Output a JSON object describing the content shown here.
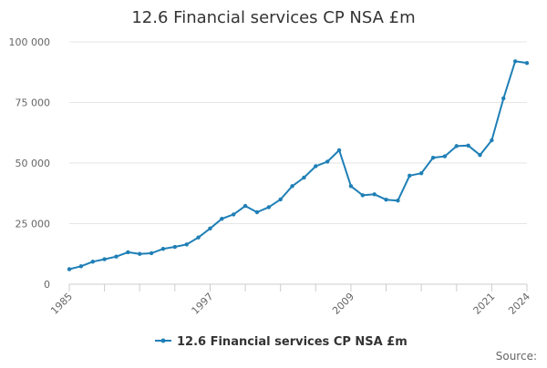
{
  "chart_data": {
    "type": "line",
    "title": "12.6 Financial services CP NSA £m",
    "xlabel": "",
    "ylabel": "",
    "xlim": [
      1985,
      2024
    ],
    "ylim": [
      0,
      100000
    ],
    "y_ticks": [
      0,
      25000,
      50000,
      75000,
      100000
    ],
    "y_tick_labels": [
      "0",
      "25 000",
      "50 000",
      "75 000",
      "100 000"
    ],
    "x_tick_labels": [
      "1985",
      "1997",
      "2009",
      "2021",
      "2024"
    ],
    "grid": "horizontal",
    "legend_position": "bottom",
    "series": [
      {
        "name": "12.6 Financial services CP NSA £m",
        "color": "#1f7fb6",
        "points": [
          [
            1985,
            6200
          ],
          [
            1986,
            7400
          ],
          [
            1987,
            9300
          ],
          [
            1988,
            10300
          ],
          [
            1989,
            11400
          ],
          [
            1990,
            13200
          ],
          [
            1991,
            12500
          ],
          [
            1992,
            12800
          ],
          [
            1993,
            14600
          ],
          [
            1994,
            15400
          ],
          [
            1995,
            16400
          ],
          [
            1996,
            19300
          ],
          [
            1997,
            23000
          ],
          [
            1998,
            27000
          ],
          [
            1999,
            28800
          ],
          [
            2000,
            32300
          ],
          [
            2001,
            29700
          ],
          [
            2002,
            31800
          ],
          [
            2003,
            35000
          ],
          [
            2004,
            40500
          ],
          [
            2005,
            44000
          ],
          [
            2006,
            48700
          ],
          [
            2007,
            50600
          ],
          [
            2008,
            55300
          ],
          [
            2009,
            40500
          ],
          [
            2010,
            36700
          ],
          [
            2011,
            37100
          ],
          [
            2012,
            34900
          ],
          [
            2013,
            34500
          ],
          [
            2014,
            44800
          ],
          [
            2015,
            45800
          ],
          [
            2016,
            52200
          ],
          [
            2017,
            52800
          ],
          [
            2018,
            57000
          ],
          [
            2019,
            57200
          ],
          [
            2020,
            53300
          ],
          [
            2021,
            59400
          ],
          [
            2022,
            76700
          ],
          [
            2023,
            92000
          ],
          [
            2024,
            91300
          ]
        ]
      }
    ]
  },
  "source_label": "Source:"
}
